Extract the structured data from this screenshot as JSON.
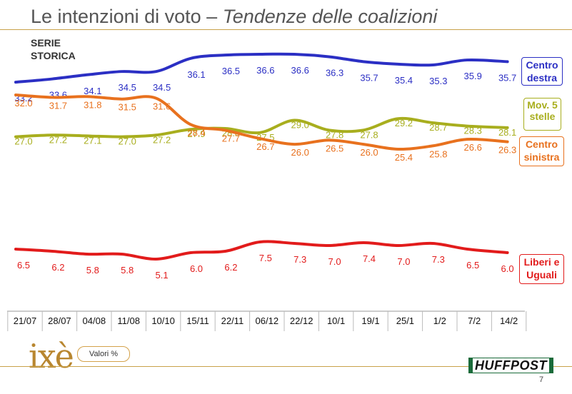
{
  "title": {
    "main": "Le intenzioni di voto –",
    "sub": "Tendenze delle coalizioni"
  },
  "serie_label": "SERIE STORICA",
  "unit_label": "Valori %",
  "logo_text": "ixè",
  "brand": "HUFFPOST",
  "page_number": "7",
  "chart_data": {
    "type": "line",
    "title": "Le intenzioni di voto – Tendenze delle coalizioni",
    "categories": [
      "21/07",
      "28/07",
      "04/08",
      "11/08",
      "10/10",
      "15/11",
      "22/11",
      "06/12",
      "22/12",
      "10/1",
      "19/1",
      "25/1",
      "1/2",
      "7/2",
      "14/2"
    ],
    "unit": "%",
    "series": [
      {
        "name": "Centro destra",
        "color": "#2b2fc4",
        "values": [
          33.2,
          33.6,
          34.1,
          34.5,
          34.5,
          36.1,
          36.5,
          36.6,
          36.6,
          36.3,
          35.7,
          35.4,
          35.3,
          35.9,
          35.7
        ]
      },
      {
        "name": "Mov. 5 stelle",
        "color": "#a8ae1e",
        "values": [
          27.0,
          27.2,
          27.1,
          27.0,
          27.2,
          27.9,
          28.0,
          27.5,
          29.0,
          27.8,
          27.8,
          29.2,
          28.7,
          28.3,
          28.1
        ]
      },
      {
        "name": "Centro sinistra",
        "color": "#e8711e",
        "values": [
          32.0,
          31.7,
          31.8,
          31.5,
          31.6,
          28.4,
          27.7,
          26.7,
          26.0,
          26.5,
          26.0,
          25.4,
          25.8,
          26.6,
          26.3
        ]
      },
      {
        "name": "Liberi e Uguali",
        "color": "#e21b1b",
        "values": [
          6.5,
          6.2,
          5.8,
          5.8,
          5.1,
          6.0,
          6.2,
          7.5,
          7.3,
          7.0,
          7.4,
          7.0,
          7.3,
          6.5,
          6.0
        ]
      }
    ]
  }
}
